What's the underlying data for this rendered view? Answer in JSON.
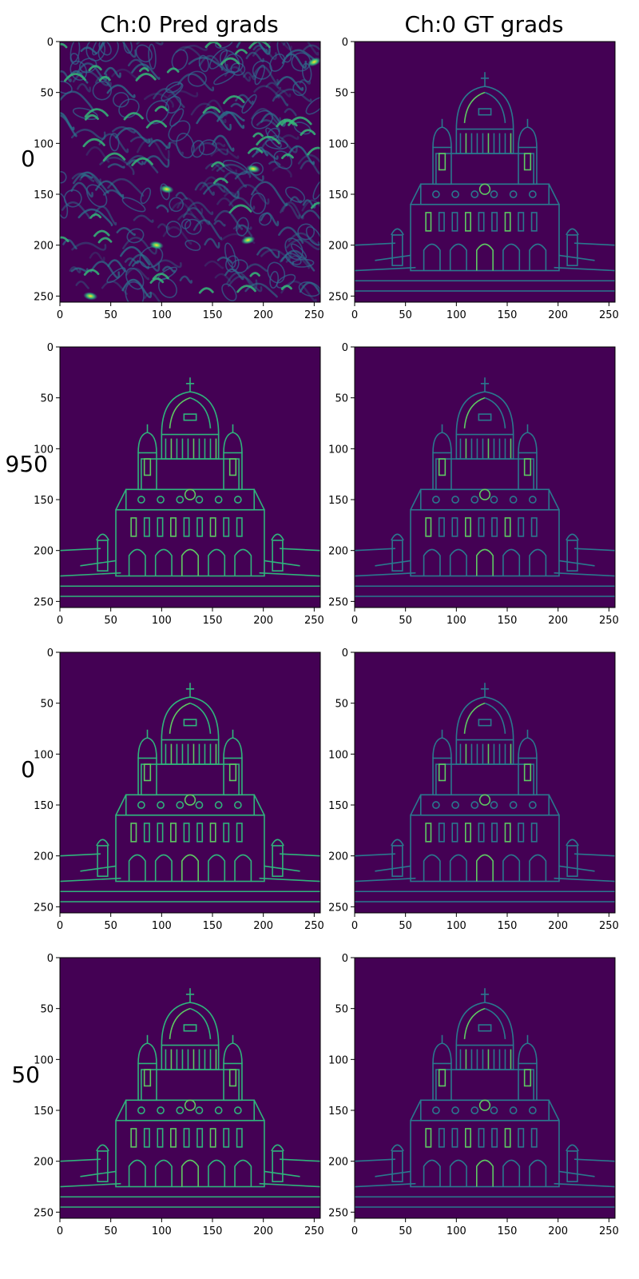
{
  "figure": {
    "column_titles": [
      "Ch:0 Pred grads",
      "Ch:0 GT grads"
    ],
    "row_labels": [
      "0",
      "950",
      "0",
      "50"
    ],
    "colormap": "viridis",
    "colors": {
      "low": "#440154",
      "mid": "#21918c",
      "high": "#fde725",
      "axis": "#000000"
    }
  },
  "chart_data": [
    {
      "type": "heatmap",
      "title": "Ch:0 Pred grads",
      "row_label": "0",
      "content": "noise",
      "xlim": [
        0,
        256
      ],
      "ylim": [
        256,
        0
      ],
      "xticks": [
        0,
        50,
        100,
        150,
        200,
        250
      ],
      "yticks": [
        0,
        50,
        100,
        150,
        200,
        250
      ]
    },
    {
      "type": "heatmap",
      "title": "Ch:0 GT grads",
      "row_label": "0",
      "content": "cathedral-edges",
      "xlim": [
        0,
        256
      ],
      "ylim": [
        256,
        0
      ],
      "xticks": [
        0,
        50,
        100,
        150,
        200,
        250
      ],
      "yticks": [
        0,
        50,
        100,
        150,
        200,
        250
      ]
    },
    {
      "type": "heatmap",
      "row_label": "950",
      "content": "cathedral-edges",
      "xlim": [
        0,
        256
      ],
      "ylim": [
        256,
        0
      ],
      "xticks": [
        0,
        50,
        100,
        150,
        200,
        250
      ],
      "yticks": [
        0,
        50,
        100,
        150,
        200,
        250
      ]
    },
    {
      "type": "heatmap",
      "row_label": "950",
      "content": "cathedral-edges",
      "xlim": [
        0,
        256
      ],
      "ylim": [
        256,
        0
      ],
      "xticks": [
        0,
        50,
        100,
        150,
        200,
        250
      ],
      "yticks": [
        0,
        50,
        100,
        150,
        200,
        250
      ]
    },
    {
      "type": "heatmap",
      "row_label": "0",
      "content": "cathedral-edges",
      "xlim": [
        0,
        256
      ],
      "ylim": [
        256,
        0
      ],
      "xticks": [
        0,
        50,
        100,
        150,
        200,
        250
      ],
      "yticks": [
        0,
        50,
        100,
        150,
        200,
        250
      ]
    },
    {
      "type": "heatmap",
      "row_label": "0",
      "content": "cathedral-edges",
      "xlim": [
        0,
        256
      ],
      "ylim": [
        256,
        0
      ],
      "xticks": [
        0,
        50,
        100,
        150,
        200,
        250
      ],
      "yticks": [
        0,
        50,
        100,
        150,
        200,
        250
      ]
    },
    {
      "type": "heatmap",
      "row_label": "50",
      "content": "cathedral-edges",
      "xlim": [
        0,
        256
      ],
      "ylim": [
        256,
        0
      ],
      "xticks": [
        0,
        50,
        100,
        150,
        200,
        250
      ],
      "yticks": [
        0,
        50,
        100,
        150,
        200,
        250
      ]
    },
    {
      "type": "heatmap",
      "row_label": "50",
      "content": "cathedral-edges",
      "xlim": [
        0,
        256
      ],
      "ylim": [
        256,
        0
      ],
      "xticks": [
        0,
        50,
        100,
        150,
        200,
        250
      ],
      "yticks": [
        0,
        50,
        100,
        150,
        200,
        250
      ]
    }
  ]
}
